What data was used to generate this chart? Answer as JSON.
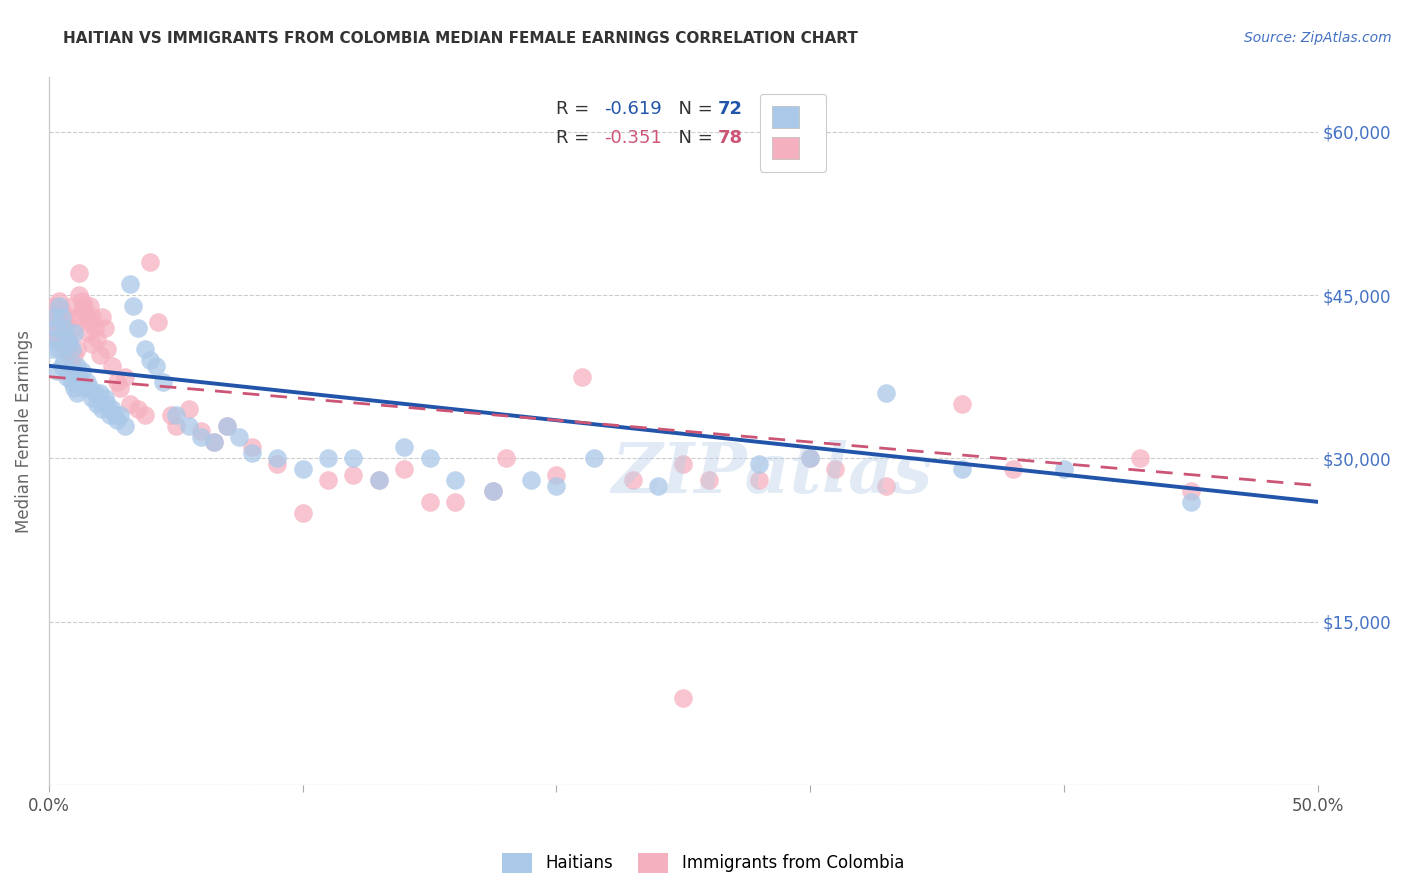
{
  "title": "HAITIAN VS IMMIGRANTS FROM COLOMBIA MEDIAN FEMALE EARNINGS CORRELATION CHART",
  "source": "Source: ZipAtlas.com",
  "ylabel": "Median Female Earnings",
  "xlim": [
    0.0,
    0.5
  ],
  "ylim": [
    0,
    65000
  ],
  "yticks": [
    0,
    15000,
    30000,
    45000,
    60000
  ],
  "ytick_labels": [
    "",
    "$15,000",
    "$30,000",
    "$45,000",
    "$60,000"
  ],
  "xticks": [
    0.0,
    0.1,
    0.2,
    0.3,
    0.4,
    0.5
  ],
  "xtick_labels": [
    "0.0%",
    "",
    "",
    "",
    "",
    "50.0%"
  ],
  "legend_labels": [
    "Haitians",
    "Immigrants from Colombia"
  ],
  "blue_R": -0.619,
  "blue_N": 72,
  "pink_R": -0.351,
  "pink_N": 78,
  "blue_color": "#aac8e8",
  "blue_line_color": "#2255aa",
  "pink_color": "#f5b0c0",
  "pink_line_color": "#cc5575",
  "watermark": "ZIPatlas",
  "background_color": "#ffffff",
  "grid_color": "#cccccc",
  "title_color": "#333333",
  "blue_scatter_x": [
    0.001,
    0.002,
    0.002,
    0.003,
    0.003,
    0.004,
    0.004,
    0.005,
    0.005,
    0.006,
    0.006,
    0.007,
    0.007,
    0.008,
    0.008,
    0.009,
    0.009,
    0.01,
    0.01,
    0.011,
    0.011,
    0.012,
    0.013,
    0.014,
    0.015,
    0.016,
    0.017,
    0.018,
    0.019,
    0.02,
    0.021,
    0.022,
    0.023,
    0.024,
    0.025,
    0.026,
    0.027,
    0.028,
    0.03,
    0.032,
    0.033,
    0.035,
    0.038,
    0.04,
    0.042,
    0.045,
    0.05,
    0.055,
    0.06,
    0.065,
    0.07,
    0.075,
    0.08,
    0.09,
    0.1,
    0.11,
    0.12,
    0.13,
    0.14,
    0.15,
    0.16,
    0.175,
    0.19,
    0.2,
    0.215,
    0.24,
    0.28,
    0.3,
    0.33,
    0.36,
    0.4,
    0.45
  ],
  "blue_scatter_y": [
    40000,
    43000,
    41000,
    42000,
    38000,
    44000,
    40000,
    43000,
    38500,
    42000,
    39000,
    41000,
    37500,
    40500,
    38000,
    40000,
    37000,
    41500,
    36500,
    38500,
    36000,
    37500,
    38000,
    36500,
    37000,
    36500,
    35500,
    36000,
    35000,
    36000,
    34500,
    35500,
    35000,
    34000,
    34500,
    34000,
    33500,
    34000,
    33000,
    46000,
    44000,
    42000,
    40000,
    39000,
    38500,
    37000,
    34000,
    33000,
    32000,
    31500,
    33000,
    32000,
    30500,
    30000,
    29000,
    30000,
    30000,
    28000,
    31000,
    30000,
    28000,
    27000,
    28000,
    27500,
    30000,
    27500,
    29500,
    30000,
    36000,
    29000,
    29000,
    26000
  ],
  "pink_scatter_x": [
    0.001,
    0.002,
    0.002,
    0.003,
    0.003,
    0.004,
    0.004,
    0.005,
    0.005,
    0.006,
    0.006,
    0.007,
    0.007,
    0.008,
    0.008,
    0.009,
    0.009,
    0.01,
    0.01,
    0.011,
    0.011,
    0.012,
    0.012,
    0.013,
    0.013,
    0.014,
    0.015,
    0.015,
    0.016,
    0.016,
    0.017,
    0.017,
    0.018,
    0.019,
    0.02,
    0.021,
    0.022,
    0.023,
    0.025,
    0.027,
    0.028,
    0.03,
    0.032,
    0.035,
    0.038,
    0.04,
    0.043,
    0.048,
    0.05,
    0.055,
    0.06,
    0.065,
    0.07,
    0.08,
    0.09,
    0.1,
    0.11,
    0.12,
    0.13,
    0.14,
    0.15,
    0.16,
    0.175,
    0.18,
    0.2,
    0.21,
    0.23,
    0.25,
    0.26,
    0.28,
    0.3,
    0.31,
    0.33,
    0.36,
    0.38,
    0.43,
    0.45,
    0.25
  ],
  "pink_scatter_y": [
    41000,
    44000,
    42500,
    43500,
    41000,
    44500,
    42000,
    43500,
    40500,
    43000,
    41000,
    42500,
    40000,
    41000,
    39500,
    44000,
    38500,
    42000,
    39500,
    43000,
    40000,
    47000,
    45000,
    44500,
    43500,
    44000,
    43000,
    41500,
    44000,
    42500,
    43000,
    40500,
    42000,
    41000,
    39500,
    43000,
    42000,
    40000,
    38500,
    37000,
    36500,
    37500,
    35000,
    34500,
    34000,
    48000,
    42500,
    34000,
    33000,
    34500,
    32500,
    31500,
    33000,
    31000,
    29500,
    25000,
    28000,
    28500,
    28000,
    29000,
    26000,
    26000,
    27000,
    30000,
    28500,
    37500,
    28000,
    29500,
    28000,
    28000,
    30000,
    29000,
    27500,
    35000,
    29000,
    30000,
    27000,
    8000
  ]
}
